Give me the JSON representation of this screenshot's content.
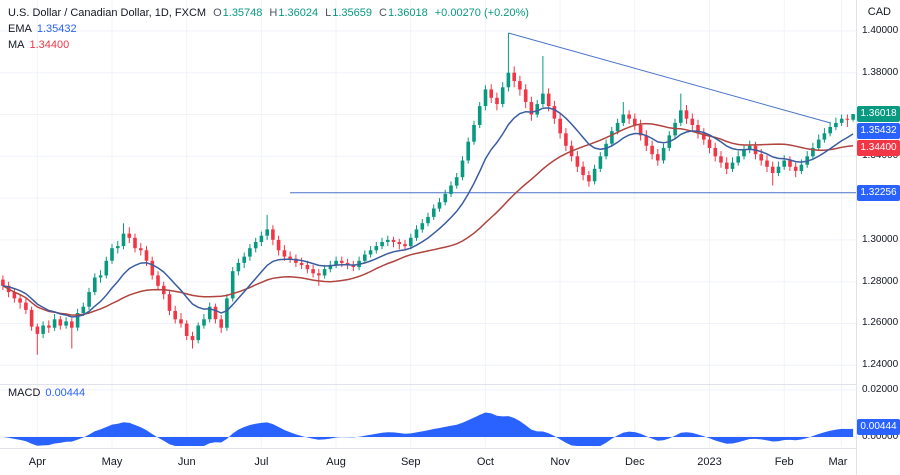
{
  "header": {
    "symbol_title": "U.S. Dollar / Canadian Dollar, 1D, FXCM",
    "ohlc": {
      "o_label": "O",
      "o_value": "1.35748",
      "h_label": "H",
      "h_value": "1.36024",
      "l_label": "L",
      "l_value": "1.35659",
      "c_label": "C",
      "c_value": "1.36018",
      "change": "+0.00270 (+0.20%)"
    },
    "ema_label": "EMA",
    "ema_value": "1.35432",
    "ma_label": "MA",
    "ma_value": "1.34400",
    "currency_label": "CAD"
  },
  "macd_row": {
    "label": "MACD",
    "value": "0.00444"
  },
  "axes": {
    "price_ticks": [
      {
        "value": 1.4,
        "label": "1.40000"
      },
      {
        "value": 1.38,
        "label": "1.38000"
      },
      {
        "value": 1.36,
        "label": "1.36000"
      },
      {
        "value": 1.34,
        "label": "1.34000"
      },
      {
        "value": 1.32,
        "label": "1.32000"
      },
      {
        "value": 1.3,
        "label": "1.30000"
      },
      {
        "value": 1.28,
        "label": "1.28000"
      },
      {
        "value": 1.26,
        "label": "1.26000"
      },
      {
        "value": 1.24,
        "label": "1.24000"
      }
    ],
    "macd_ticks": [
      {
        "value": 0.02,
        "label": "0.02000"
      },
      {
        "value": 0.0,
        "label": "0.00000"
      }
    ],
    "time_ticks": [
      {
        "bar": 6,
        "label": "Apr"
      },
      {
        "bar": 19,
        "label": "May"
      },
      {
        "bar": 32,
        "label": "Jun"
      },
      {
        "bar": 45,
        "label": "Jul"
      },
      {
        "bar": 58,
        "label": "Aug"
      },
      {
        "bar": 71,
        "label": "Sep"
      },
      {
        "bar": 84,
        "label": "Oct"
      },
      {
        "bar": 97,
        "label": "Nov"
      },
      {
        "bar": 110,
        "label": "Dec"
      },
      {
        "bar": 123,
        "label": "2023"
      },
      {
        "bar": 136,
        "label": "Feb"
      },
      {
        "bar": 146,
        "label": "Mar"
      }
    ]
  },
  "badges": [
    {
      "id": "close",
      "pane": "price",
      "value": 1.36018,
      "text": "1.36018",
      "color": "#089981"
    },
    {
      "id": "ema",
      "pane": "price",
      "value": 1.35432,
      "text": "1.35432",
      "color": "#2962ff"
    },
    {
      "id": "ma",
      "pane": "price",
      "value": 1.344,
      "text": "1.34400",
      "color": "#f23645"
    },
    {
      "id": "level",
      "pane": "price",
      "value": 1.32256,
      "text": "1.32256",
      "color": "#2962ff"
    },
    {
      "id": "macd",
      "pane": "macd",
      "value": 0.00444,
      "text": "0.00444",
      "color": "#2962ff"
    }
  ],
  "colors": {
    "up": "#089981",
    "down": "#f23645",
    "ema": "#3a5da0",
    "ma": "#b0443e",
    "trendline": "#4a72c9",
    "hline": "#4a72c9",
    "macd_fill": "#2962ff",
    "grid": "#f0f3fa",
    "border": "#e0e3eb",
    "text": "#131722",
    "bg": "#ffffff"
  },
  "chart_data": {
    "type": "candlestick",
    "title": "U.S. Dollar / Canadian Dollar, 1D, FXCM",
    "legend": [
      "EMA",
      "MA",
      "MACD"
    ],
    "price_axis": {
      "min": 1.2315,
      "max": 1.4148
    },
    "macd_axis": {
      "min": -0.0043,
      "max": 0.0208
    },
    "last_ohlc": {
      "o": 1.35748,
      "h": 1.36024,
      "l": 1.35659,
      "c": 1.36018,
      "change": 0.0027,
      "change_pct": 0.2
    },
    "ema_last": 1.35432,
    "ma_last": 1.344,
    "macd_last": 0.00444,
    "annotations": {
      "trendline": {
        "from_bar": 88,
        "from_price": 1.399,
        "to_bar": 144,
        "to_price": 1.356
      },
      "hline": {
        "price": 1.32256,
        "from_bar": 50
      }
    },
    "candles": [
      [
        1.281,
        1.283,
        1.276,
        1.278
      ],
      [
        1.278,
        1.28,
        1.2725,
        1.275
      ],
      [
        1.275,
        1.2765,
        1.27,
        1.272
      ],
      [
        1.272,
        1.274,
        1.267,
        1.27
      ],
      [
        1.27,
        1.272,
        1.2645,
        1.2665
      ],
      [
        1.2665,
        1.268,
        1.2565,
        1.2585
      ],
      [
        1.2585,
        1.26,
        1.245,
        1.255
      ],
      [
        1.255,
        1.261,
        1.253,
        1.259
      ],
      [
        1.259,
        1.2615,
        1.2555,
        1.258
      ],
      [
        1.258,
        1.2645,
        1.2565,
        1.262
      ],
      [
        1.262,
        1.2635,
        1.257,
        1.259
      ],
      [
        1.259,
        1.263,
        1.2575,
        1.261
      ],
      [
        1.261,
        1.2625,
        1.248,
        1.258
      ],
      [
        1.258,
        1.267,
        1.2565,
        1.265
      ],
      [
        1.265,
        1.27,
        1.2635,
        1.268
      ],
      [
        1.268,
        1.277,
        1.2665,
        1.275
      ],
      [
        1.275,
        1.284,
        1.2735,
        1.282
      ],
      [
        1.282,
        1.2855,
        1.2795,
        1.283
      ],
      [
        1.283,
        1.292,
        1.2815,
        1.29
      ],
      [
        1.29,
        1.298,
        1.2885,
        1.296
      ],
      [
        1.296,
        1.2995,
        1.2935,
        1.297
      ],
      [
        1.297,
        1.308,
        1.2955,
        1.303
      ],
      [
        1.303,
        1.306,
        1.2985,
        1.301
      ],
      [
        1.301,
        1.303,
        1.294,
        1.296
      ],
      [
        1.296,
        1.2985,
        1.2925,
        1.295
      ],
      [
        1.295,
        1.297,
        1.2875,
        1.29
      ],
      [
        1.29,
        1.292,
        1.281,
        1.283
      ],
      [
        1.283,
        1.285,
        1.276,
        1.278
      ],
      [
        1.278,
        1.28,
        1.2715,
        1.274
      ],
      [
        1.274,
        1.2755,
        1.264,
        1.266
      ],
      [
        1.266,
        1.2685,
        1.26,
        1.262
      ],
      [
        1.262,
        1.265,
        1.258,
        1.26
      ],
      [
        1.26,
        1.2615,
        1.252,
        1.254
      ],
      [
        1.254,
        1.256,
        1.248,
        1.252
      ],
      [
        1.252,
        1.2605,
        1.2505,
        1.259
      ],
      [
        1.259,
        1.2645,
        1.2575,
        1.262
      ],
      [
        1.262,
        1.27,
        1.2605,
        1.268
      ],
      [
        1.268,
        1.2695,
        1.26,
        1.262
      ],
      [
        1.262,
        1.264,
        1.2555,
        1.258
      ],
      [
        1.258,
        1.274,
        1.2565,
        1.272
      ],
      [
        1.272,
        1.287,
        1.2705,
        1.285
      ],
      [
        1.285,
        1.291,
        1.283,
        1.289
      ],
      [
        1.289,
        1.294,
        1.2865,
        1.292
      ],
      [
        1.292,
        1.298,
        1.29,
        1.296
      ],
      [
        1.296,
        1.301,
        1.294,
        1.299
      ],
      [
        1.299,
        1.304,
        1.297,
        1.302
      ],
      [
        1.302,
        1.312,
        1.3,
        1.305
      ],
      [
        1.305,
        1.307,
        1.2975,
        1.3
      ],
      [
        1.3,
        1.302,
        1.2925,
        1.295
      ],
      [
        1.295,
        1.2975,
        1.29,
        1.292
      ],
      [
        1.292,
        1.2945,
        1.289,
        1.291
      ],
      [
        1.291,
        1.293,
        1.287,
        1.289
      ],
      [
        1.289,
        1.2915,
        1.286,
        1.288
      ],
      [
        1.288,
        1.29,
        1.284,
        1.286
      ],
      [
        1.286,
        1.288,
        1.282,
        1.284
      ],
      [
        1.284,
        1.286,
        1.278,
        1.283
      ],
      [
        1.283,
        1.288,
        1.2815,
        1.286
      ],
      [
        1.286,
        1.29,
        1.2845,
        1.288
      ],
      [
        1.288,
        1.292,
        1.2865,
        1.29
      ],
      [
        1.29,
        1.292,
        1.287,
        1.289
      ],
      [
        1.289,
        1.291,
        1.286,
        1.288
      ],
      [
        1.288,
        1.29,
        1.285,
        1.287
      ],
      [
        1.287,
        1.292,
        1.2855,
        1.29
      ],
      [
        1.29,
        1.295,
        1.2885,
        1.293
      ],
      [
        1.293,
        1.297,
        1.2915,
        1.295
      ],
      [
        1.295,
        1.299,
        1.2935,
        1.297
      ],
      [
        1.297,
        1.301,
        1.2955,
        1.299
      ],
      [
        1.299,
        1.302,
        1.297,
        1.3
      ],
      [
        1.3,
        1.3015,
        1.2965,
        1.299
      ],
      [
        1.299,
        1.3005,
        1.2955,
        1.298
      ],
      [
        1.298,
        1.3,
        1.295,
        1.297
      ],
      [
        1.297,
        1.303,
        1.2955,
        1.301
      ],
      [
        1.301,
        1.307,
        1.2995,
        1.305
      ],
      [
        1.305,
        1.31,
        1.3035,
        1.308
      ],
      [
        1.308,
        1.313,
        1.3065,
        1.311
      ],
      [
        1.311,
        1.317,
        1.3095,
        1.315
      ],
      [
        1.315,
        1.32,
        1.3135,
        1.318
      ],
      [
        1.318,
        1.324,
        1.3165,
        1.322
      ],
      [
        1.322,
        1.328,
        1.3205,
        1.326
      ],
      [
        1.326,
        1.332,
        1.3245,
        1.33
      ],
      [
        1.33,
        1.34,
        1.3285,
        1.338
      ],
      [
        1.338,
        1.349,
        1.3365,
        1.347
      ],
      [
        1.347,
        1.357,
        1.3455,
        1.355
      ],
      [
        1.355,
        1.366,
        1.3535,
        1.364
      ],
      [
        1.364,
        1.374,
        1.362,
        1.372
      ],
      [
        1.372,
        1.3745,
        1.3655,
        1.368
      ],
      [
        1.368,
        1.3705,
        1.362,
        1.365
      ],
      [
        1.365,
        1.3755,
        1.3635,
        1.373
      ],
      [
        1.373,
        1.399,
        1.371,
        1.38
      ],
      [
        1.38,
        1.383,
        1.373,
        1.376
      ],
      [
        1.376,
        1.3785,
        1.369,
        1.372
      ],
      [
        1.372,
        1.3745,
        1.363,
        1.366
      ],
      [
        1.366,
        1.3685,
        1.357,
        1.36
      ],
      [
        1.36,
        1.367,
        1.3585,
        1.365
      ],
      [
        1.365,
        1.388,
        1.3635,
        1.37
      ],
      [
        1.37,
        1.3725,
        1.3615,
        1.364
      ],
      [
        1.364,
        1.3665,
        1.3555,
        1.358
      ],
      [
        1.358,
        1.3605,
        1.3485,
        1.351
      ],
      [
        1.351,
        1.3535,
        1.3425,
        1.345
      ],
      [
        1.345,
        1.3475,
        1.3375,
        1.34
      ],
      [
        1.34,
        1.3425,
        1.3325,
        1.335
      ],
      [
        1.335,
        1.3375,
        1.3285,
        1.331
      ],
      [
        1.331,
        1.333,
        1.3255,
        1.328
      ],
      [
        1.328,
        1.336,
        1.3265,
        1.334
      ],
      [
        1.334,
        1.342,
        1.3325,
        1.34
      ],
      [
        1.34,
        1.348,
        1.3385,
        1.346
      ],
      [
        1.346,
        1.354,
        1.3445,
        1.352
      ],
      [
        1.352,
        1.358,
        1.3505,
        1.356
      ],
      [
        1.356,
        1.366,
        1.3545,
        1.36
      ],
      [
        1.36,
        1.362,
        1.3555,
        1.358
      ],
      [
        1.358,
        1.3605,
        1.3525,
        1.355
      ],
      [
        1.355,
        1.3575,
        1.3475,
        1.35
      ],
      [
        1.35,
        1.3525,
        1.3425,
        1.345
      ],
      [
        1.345,
        1.3475,
        1.3385,
        1.341
      ],
      [
        1.341,
        1.3435,
        1.3355,
        1.338
      ],
      [
        1.338,
        1.346,
        1.3365,
        1.344
      ],
      [
        1.344,
        1.352,
        1.3425,
        1.35
      ],
      [
        1.35,
        1.358,
        1.3485,
        1.356
      ],
      [
        1.356,
        1.37,
        1.3545,
        1.362
      ],
      [
        1.362,
        1.3645,
        1.3555,
        1.358
      ],
      [
        1.358,
        1.3605,
        1.3525,
        1.355
      ],
      [
        1.355,
        1.3575,
        1.3485,
        1.351
      ],
      [
        1.351,
        1.3535,
        1.3455,
        1.348
      ],
      [
        1.348,
        1.3505,
        1.3415,
        1.344
      ],
      [
        1.344,
        1.3465,
        1.3375,
        1.34
      ],
      [
        1.34,
        1.3425,
        1.3345,
        1.337
      ],
      [
        1.337,
        1.3395,
        1.3315,
        1.334
      ],
      [
        1.334,
        1.3395,
        1.3325,
        1.337
      ],
      [
        1.337,
        1.3425,
        1.3355,
        1.34
      ],
      [
        1.34,
        1.3455,
        1.3385,
        1.343
      ],
      [
        1.343,
        1.3475,
        1.3415,
        1.345
      ],
      [
        1.345,
        1.347,
        1.3385,
        1.341
      ],
      [
        1.341,
        1.3435,
        1.3355,
        1.338
      ],
      [
        1.338,
        1.3405,
        1.3325,
        1.335
      ],
      [
        1.335,
        1.3375,
        1.326,
        1.332
      ],
      [
        1.332,
        1.3375,
        1.3305,
        1.335
      ],
      [
        1.335,
        1.3405,
        1.3335,
        1.338
      ],
      [
        1.338,
        1.34,
        1.333,
        1.335
      ],
      [
        1.335,
        1.337,
        1.33,
        1.333
      ],
      [
        1.333,
        1.3385,
        1.3315,
        1.336
      ],
      [
        1.336,
        1.3425,
        1.3345,
        1.34
      ],
      [
        1.34,
        1.3465,
        1.3385,
        1.344
      ],
      [
        1.344,
        1.3505,
        1.3425,
        1.348
      ],
      [
        1.348,
        1.3535,
        1.3465,
        1.351
      ],
      [
        1.351,
        1.3565,
        1.3495,
        1.354
      ],
      [
        1.354,
        1.3585,
        1.3525,
        1.356
      ],
      [
        1.356,
        1.36,
        1.3545,
        1.358
      ],
      [
        1.358,
        1.36,
        1.354,
        1.35748
      ],
      [
        1.35748,
        1.36024,
        1.35659,
        1.36018
      ]
    ]
  }
}
